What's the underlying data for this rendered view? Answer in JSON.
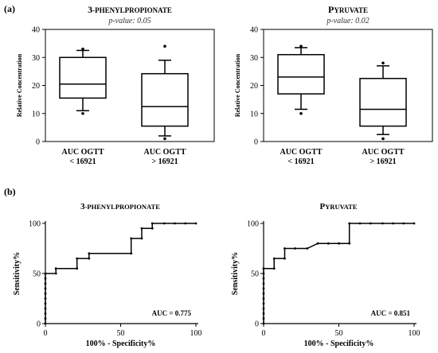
{
  "panel_labels": [
    "(a)",
    "(b)"
  ],
  "chart_data": [
    {
      "type": "box",
      "title": "3-PHENYLPROPIONATE",
      "subtitle": "p-value: 0.05",
      "ylabel": "Relative Concentration",
      "ylim": [
        0,
        40
      ],
      "yticks": [
        0,
        10,
        20,
        30,
        40
      ],
      "categories": [
        [
          "AUC OGTT",
          "< 16921"
        ],
        [
          "AUC OGTT",
          "> 16921"
        ]
      ],
      "boxes": [
        {
          "whisker_low": 11,
          "q1": 15.5,
          "median": 20.5,
          "q3": 30,
          "whisker_high": 32.5,
          "outliers": [
            10,
            33
          ]
        },
        {
          "whisker_low": 2,
          "q1": 5.5,
          "median": 12.5,
          "q3": 24.2,
          "whisker_high": 29,
          "outliers": [
            1,
            34
          ]
        }
      ],
      "color": "#000000"
    },
    {
      "type": "box",
      "title": "PYRUVATE",
      "subtitle": "p-value: 0.02",
      "ylabel": "Relative Concentration",
      "ylim": [
        0,
        40
      ],
      "yticks": [
        0,
        10,
        20,
        30,
        40
      ],
      "categories": [
        [
          "AUC OGTT",
          "< 16921"
        ],
        [
          "AUC OGTT",
          "> 16921"
        ]
      ],
      "boxes": [
        {
          "whisker_low": 11.5,
          "q1": 17,
          "median": 23,
          "q3": 31,
          "whisker_high": 33.5,
          "outliers": [
            10,
            34
          ]
        },
        {
          "whisker_low": 2.5,
          "q1": 5.5,
          "median": 11.5,
          "q3": 22.5,
          "whisker_high": 27,
          "outliers": [
            1,
            28
          ]
        }
      ],
      "color": "#000000"
    },
    {
      "type": "line",
      "title": "3-PHENYLPROPIONATE",
      "xlabel": "100% - Specificity%",
      "ylabel": "Sensitivity%",
      "xlim": [
        0,
        100
      ],
      "ylim": [
        0,
        100
      ],
      "xticks": [
        0,
        50,
        100
      ],
      "yticks": [
        0,
        50,
        100
      ],
      "annotation": "AUC = 0.775",
      "x": [
        0,
        0,
        0,
        0,
        0,
        0,
        0,
        0,
        0,
        0,
        0,
        7,
        7,
        21,
        21,
        29,
        29,
        57,
        57,
        64,
        64,
        71,
        71,
        79,
        86,
        93,
        100
      ],
      "y": [
        0,
        5,
        10,
        15,
        20,
        25,
        30,
        35,
        40,
        45,
        50,
        50,
        55,
        55,
        65,
        65,
        70,
        70,
        85,
        85,
        95,
        95,
        100,
        100,
        100,
        100,
        100
      ],
      "color": "#000000"
    },
    {
      "type": "line",
      "title": "PYRUVATE",
      "xlabel": "100% - Specificity%",
      "ylabel": "Sensitivity%",
      "xlim": [
        0,
        100
      ],
      "ylim": [
        0,
        100
      ],
      "xticks": [
        0,
        50,
        100
      ],
      "yticks": [
        0,
        50,
        100
      ],
      "annotation": "AUC = 0.851",
      "x": [
        0,
        0,
        0,
        0,
        0,
        0,
        0,
        0,
        0,
        0,
        0,
        0,
        7,
        7,
        14,
        14,
        21,
        29,
        36,
        43,
        50,
        57,
        57,
        64,
        71,
        79,
        86,
        93,
        100
      ],
      "y": [
        0,
        5,
        10,
        15,
        20,
        25,
        30,
        35,
        40,
        45,
        50,
        55,
        55,
        65,
        65,
        75,
        75,
        75,
        80,
        80,
        80,
        80,
        100,
        100,
        100,
        100,
        100,
        100,
        100
      ],
      "color": "#000000"
    }
  ]
}
